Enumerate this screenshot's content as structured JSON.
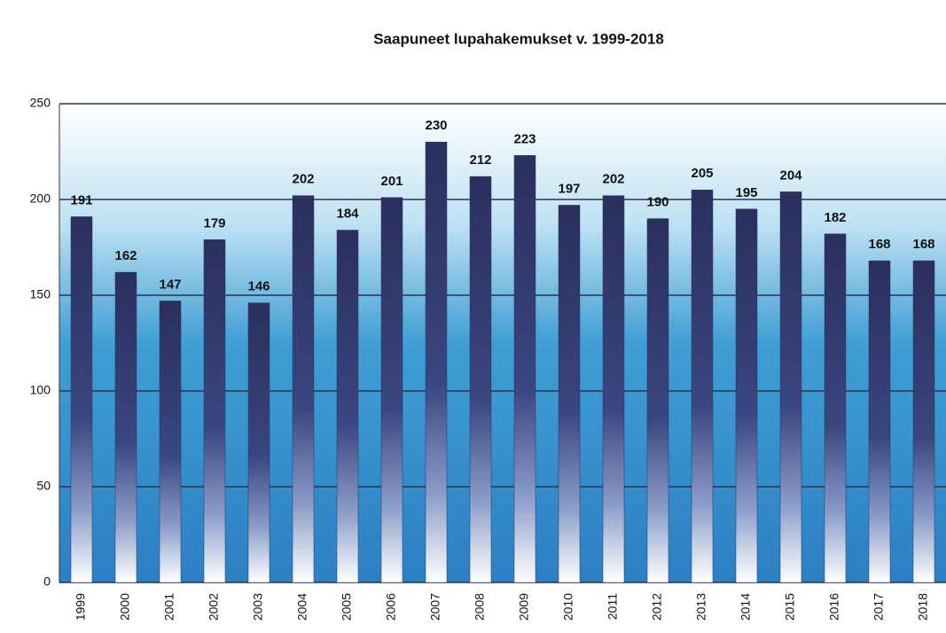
{
  "chart_data": {
    "type": "bar",
    "title": "Saapuneet lupahakemukset v. 1999-2018",
    "categories": [
      "1999",
      "2000",
      "2001",
      "2002",
      "2003",
      "2004",
      "2005",
      "2006",
      "2007",
      "2008",
      "2009",
      "2010",
      "2011",
      "2012",
      "2013",
      "2014",
      "2015",
      "2016",
      "2017",
      "2018"
    ],
    "values": [
      191,
      162,
      147,
      179,
      146,
      202,
      184,
      201,
      230,
      212,
      223,
      197,
      202,
      190,
      205,
      195,
      204,
      182,
      168,
      168
    ],
    "color": "#2e3566",
    "ylim": [
      0,
      250
    ],
    "yticks": [
      0,
      50,
      100,
      150,
      200,
      250
    ],
    "grid": true
  }
}
